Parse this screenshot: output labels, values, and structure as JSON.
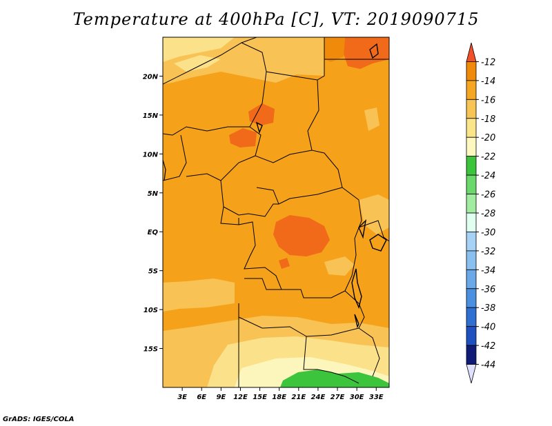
{
  "title": "Temperature at 400hPa [C], VT: 2019090715",
  "credit": "GrADS: IGES/COLA",
  "map": {
    "lon_range": [
      0,
      35
    ],
    "lat_range": [
      -20,
      25
    ],
    "lon_ticks": [
      "3E",
      "6E",
      "9E",
      "12E",
      "15E",
      "18E",
      "21E",
      "24E",
      "27E",
      "30E",
      "33E"
    ],
    "lon_tick_values": [
      3,
      6,
      9,
      12,
      15,
      18,
      21,
      24,
      27,
      30,
      33
    ],
    "lat_ticks": [
      "20N",
      "15N",
      "10N",
      "5N",
      "EQ",
      "5S",
      "10S",
      "15S"
    ],
    "lat_tick_values": [
      20,
      15,
      10,
      5,
      0,
      -5,
      -10,
      -15
    ]
  },
  "colorbar": {
    "labels": [
      "-12",
      "-14",
      "-16",
      "-18",
      "-20",
      "-22",
      "-24",
      "-26",
      "-28",
      "-30",
      "-32",
      "-34",
      "-36",
      "-38",
      "-40",
      "-42",
      "-44"
    ],
    "colors": [
      "#f0502a",
      "#f08a0a",
      "#f5a623",
      "#f7c556",
      "#fbe58a",
      "#fdf8c0",
      "#3cc43c",
      "#6ad86a",
      "#a2eca2",
      "#e0fff0",
      "#a6d2f5",
      "#8ac0ef",
      "#6aa8e8",
      "#4b8fe0",
      "#2f6fd2",
      "#1f50c0",
      "#101b78",
      "#e0e0ff"
    ]
  }
}
